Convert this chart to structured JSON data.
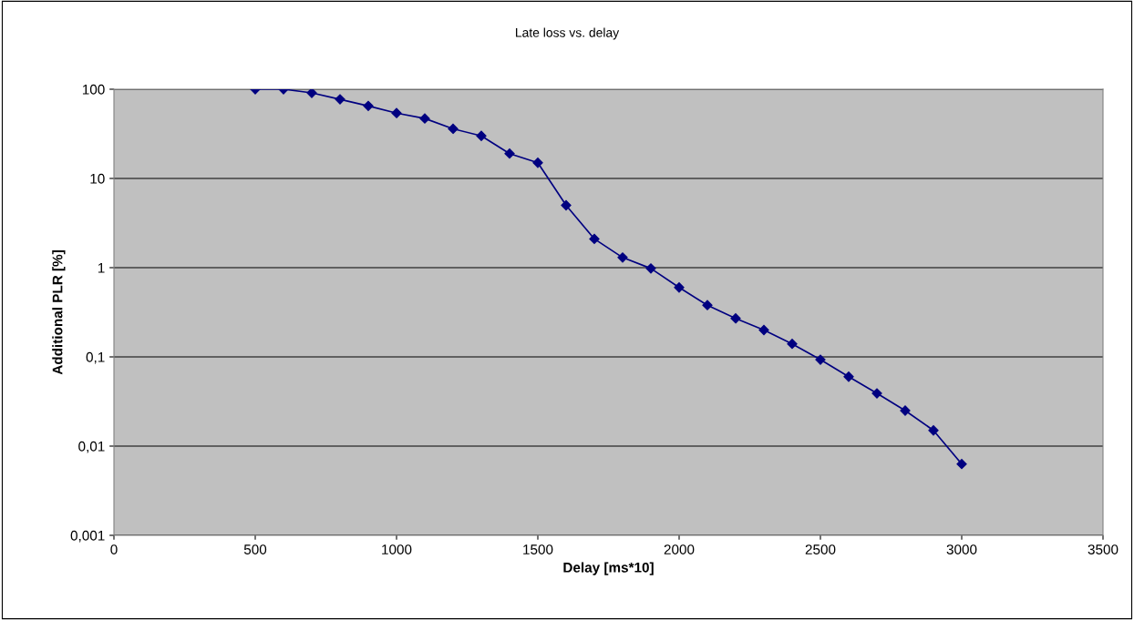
{
  "chart_data": {
    "type": "line",
    "title": "Late loss vs. delay",
    "xlabel": "Delay [ms*10]",
    "ylabel": "Additional PLR [%]",
    "x": [
      500,
      600,
      700,
      800,
      900,
      1000,
      1100,
      1200,
      1300,
      1400,
      1500,
      1600,
      1700,
      1800,
      1900,
      2000,
      2100,
      2200,
      2300,
      2400,
      2500,
      2600,
      2700,
      2800,
      2900,
      3000
    ],
    "series": [
      {
        "color": "#000080",
        "values": [
          100,
          100,
          91,
          77,
          65,
          54,
          47,
          36,
          30,
          19,
          15,
          5,
          2.1,
          1.3,
          0.98,
          0.6,
          0.38,
          0.27,
          0.2,
          0.14,
          0.093,
          0.06,
          0.039,
          0.025,
          0.015,
          0.0063
        ]
      }
    ],
    "log": "y",
    "xlim": [
      0,
      3500
    ],
    "xticks": [
      0,
      500,
      1000,
      1500,
      2000,
      2500,
      3000,
      3500
    ],
    "ylim": [
      0.001,
      100
    ],
    "yticks": [
      {
        "value": 0.001,
        "label": "0,001"
      },
      {
        "value": 0.01,
        "label": "0,01"
      },
      {
        "value": 0.1,
        "label": "0,1"
      },
      {
        "value": 1,
        "label": "1"
      },
      {
        "value": 10,
        "label": "10"
      },
      {
        "value": 100,
        "label": "100"
      }
    ],
    "grid": "y",
    "marker": "diamond",
    "line_style": "solid"
  }
}
